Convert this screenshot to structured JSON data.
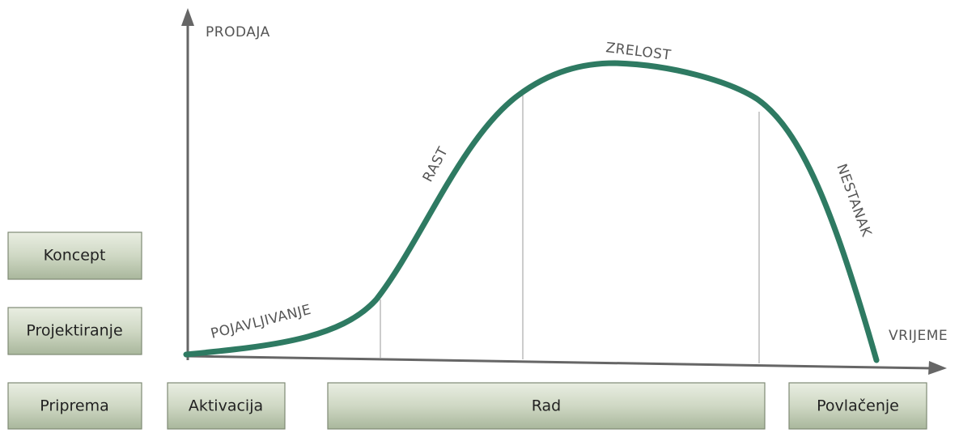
{
  "axes": {
    "y_label": "PRODAJA",
    "x_label": "VRIJEME"
  },
  "stages": [
    "POJAVLJIVANJE",
    "RAST",
    "ZRELOST",
    "NESTANAK"
  ],
  "side_boxes": [
    "Koncept",
    "Projektiranje",
    "Priprema"
  ],
  "phase_boxes": [
    "Aktivacija",
    "Rad",
    "Povlačenje"
  ]
}
